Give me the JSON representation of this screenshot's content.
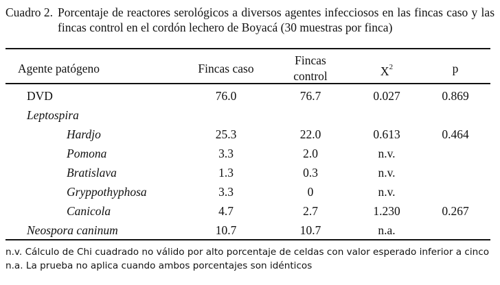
{
  "caption": {
    "label": "Cuadro 2.",
    "text": "Porcentaje de reactores serológicos a diversos agentes infecciosos en las fincas caso y las fincas control en el cordón lechero de Boyacá (30 muestras por finca)"
  },
  "headers": {
    "agent": "Agente patógeno",
    "caso": "Fincas caso",
    "control_line1": "Fincas",
    "control_line2": "control",
    "chi_base": "X",
    "chi_sup": "2",
    "p": "p"
  },
  "rows": [
    {
      "agent": "DVD",
      "italic": false,
      "indent": 1,
      "caso": "76.0",
      "control": "76.7",
      "chi": "0.027",
      "p": "0.869"
    },
    {
      "agent": "Leptospira",
      "italic": true,
      "indent": 1,
      "caso": "",
      "control": "",
      "chi": "",
      "p": ""
    },
    {
      "agent": "Hardjo",
      "italic": true,
      "indent": 2,
      "caso": "25.3",
      "control": "22.0",
      "chi": "0.613",
      "p": "0.464"
    },
    {
      "agent": "Pomona",
      "italic": true,
      "indent": 2,
      "caso": "3.3",
      "control": "2.0",
      "chi": "n.v.",
      "p": ""
    },
    {
      "agent": "Bratislava",
      "italic": true,
      "indent": 2,
      "caso": "1.3",
      "control": "0.3",
      "chi": "n.v.",
      "p": ""
    },
    {
      "agent": "Gryppothyphosa",
      "italic": true,
      "indent": 2,
      "caso": "3.3",
      "control": "0",
      "chi": "n.v.",
      "p": ""
    },
    {
      "agent": "Canicola",
      "italic": true,
      "indent": 2,
      "caso": "4.7",
      "control": "2.7",
      "chi": "1.230",
      "p": "0.267"
    },
    {
      "agent": "Neospora caninum",
      "italic": true,
      "indent": 1,
      "caso": "10.7",
      "control": "10.7",
      "chi": "n.a.",
      "p": ""
    }
  ],
  "notes": [
    "n.v. Cálculo de Chi cuadrado no válido por alto porcentaje de celdas con valor esperado inferior a cinco",
    "n.a. La prueba no aplica cuando ambos porcentajes son idénticos"
  ]
}
